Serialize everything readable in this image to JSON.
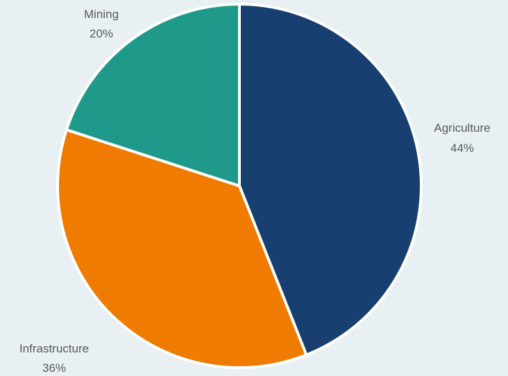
{
  "chart_data": {
    "type": "pie",
    "title": "",
    "legend": "none",
    "slices": [
      {
        "label": "Agriculture",
        "value": 44,
        "value_label": "44%",
        "color": "#173f6f"
      },
      {
        "label": "Infrastructure",
        "value": 36,
        "value_label": "36%",
        "color": "#ef7b00"
      },
      {
        "label": "Mining",
        "value": 20,
        "value_label": "20%",
        "color": "#1f9a8a"
      }
    ],
    "start_angle_deg": 0,
    "direction": "clockwise"
  }
}
